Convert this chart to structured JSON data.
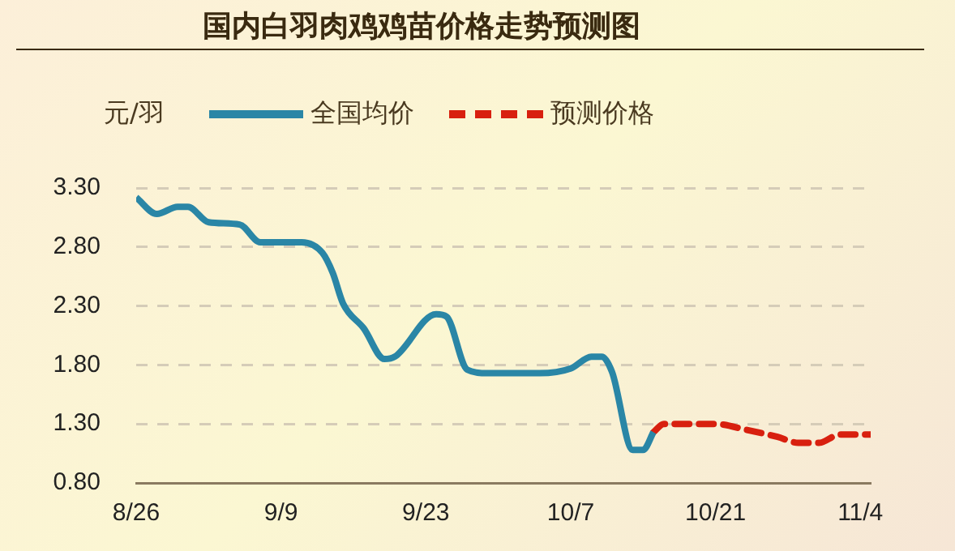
{
  "chart_data": {
    "type": "line",
    "title": "国内白羽肉鸡鸡苗价格走势预测图",
    "ylabel": "元/羽",
    "legend": "top left",
    "grid": "y",
    "marker": "none",
    "xlim": [
      "--08-26",
      "--11-05"
    ],
    "xticks": [
      {
        "value": "--08-26",
        "label": "8/26"
      },
      {
        "value": "--09-09",
        "label": "9/9"
      },
      {
        "value": "--09-23",
        "label": "9/23"
      },
      {
        "value": "--10-07",
        "label": "10/7"
      },
      {
        "value": "--10-21",
        "label": "10/21"
      },
      {
        "value": "--11-04",
        "label": "11/4"
      }
    ],
    "ylim": [
      0.8,
      3.3
    ],
    "yticks": [
      {
        "value": 0.8,
        "label": "0.80"
      },
      {
        "value": 1.3,
        "label": "1.30"
      },
      {
        "value": 1.8,
        "label": "1.80"
      },
      {
        "value": 2.3,
        "label": "2.30"
      },
      {
        "value": 2.8,
        "label": "2.80"
      },
      {
        "value": 3.3,
        "label": "3.30"
      }
    ],
    "series": [
      {
        "name": "全国均价",
        "line_style": "solid",
        "color": "#2a86a6",
        "x": [
          "--08-26",
          "--08-28",
          "--08-30",
          "--08-31",
          "--09-02",
          "--09-05",
          "--09-07",
          "--09-11",
          "--09-13",
          "--09-14",
          "--09-15",
          "--09-17",
          "--09-19",
          "--09-20",
          "--09-24",
          "--09-25",
          "--09-27",
          "--09-29",
          "--10-04",
          "--10-07",
          "--10-09",
          "--10-10",
          "--10-11",
          "--10-13",
          "--10-14",
          "--10-15"
        ],
        "values": [
          3.22,
          3.08,
          3.14,
          3.14,
          3.01,
          2.99,
          2.84,
          2.84,
          2.75,
          2.58,
          2.32,
          2.11,
          1.85,
          1.87,
          2.23,
          2.21,
          1.76,
          1.73,
          1.73,
          1.77,
          1.87,
          1.87,
          1.74,
          1.08,
          1.08,
          1.23
        ]
      },
      {
        "name": "预测价格",
        "line_style": "dashed",
        "color": "#d8200f",
        "x": [
          "--10-15",
          "--10-16",
          "--10-21",
          "--10-24",
          "--10-27",
          "--10-29",
          "--10-31",
          "--11-02",
          "--11-05"
        ],
        "values": [
          1.23,
          1.3,
          1.3,
          1.25,
          1.19,
          1.14,
          1.14,
          1.21,
          1.21
        ]
      }
    ]
  }
}
